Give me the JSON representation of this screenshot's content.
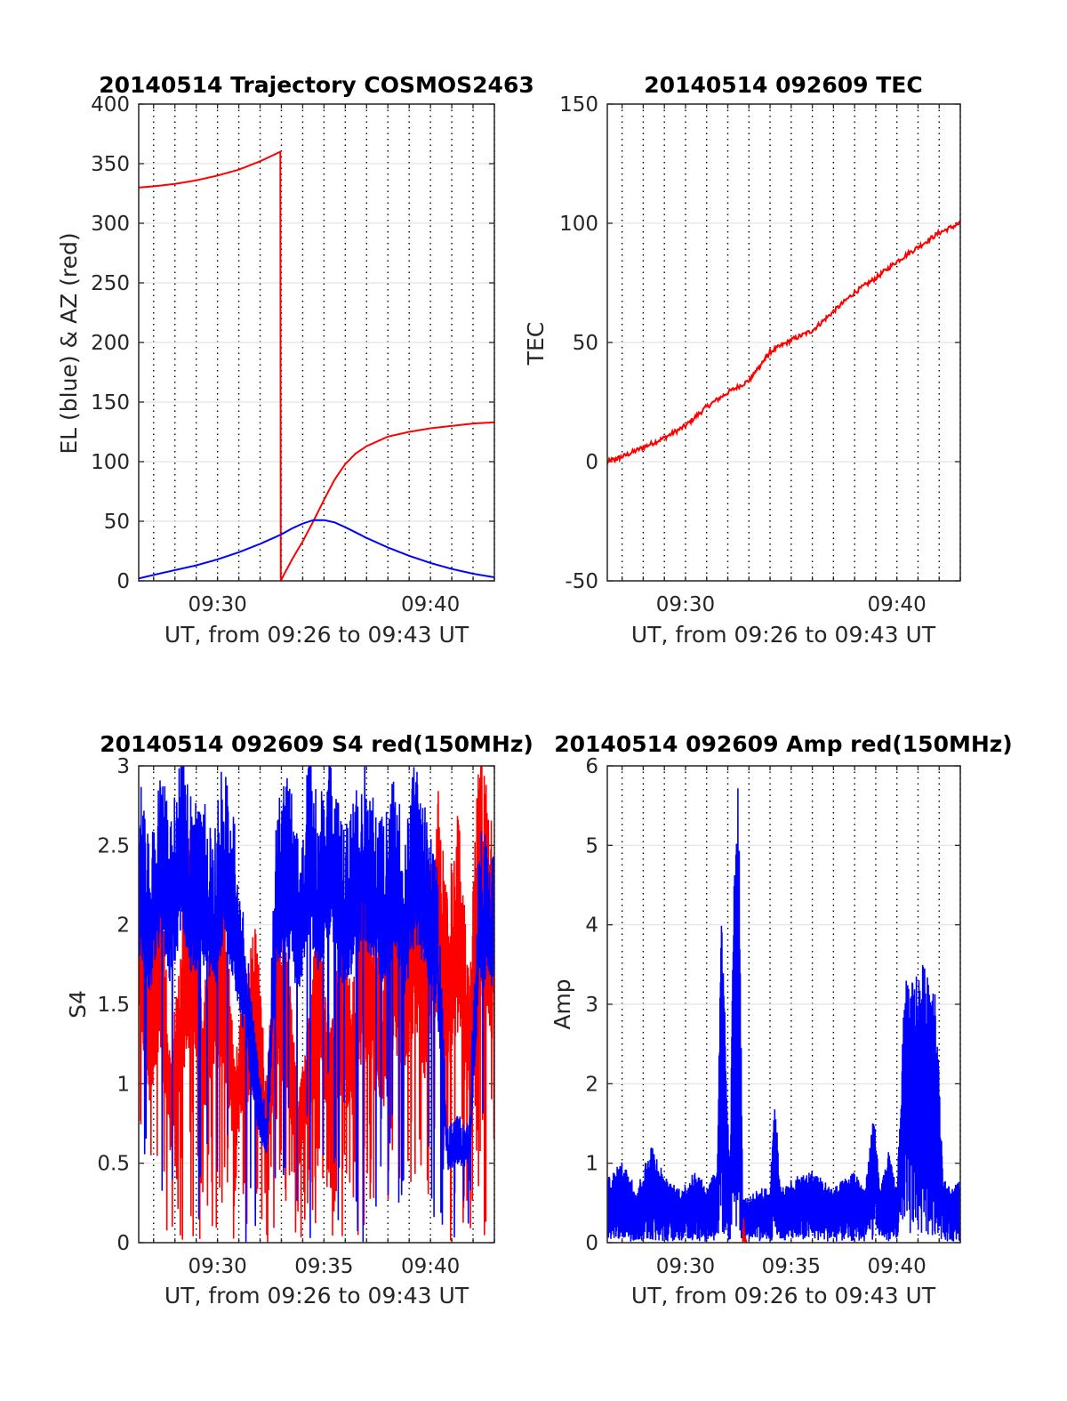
{
  "chart_data": [
    {
      "type": "line",
      "title": "20140514 Trajectory COSMOS2463",
      "xlabel": "UT, from 09:26 to 09:43 UT",
      "ylabel": "EL (blue) & AZ (red)",
      "xlim": [
        26.3,
        43.0
      ],
      "ylim": [
        0,
        400
      ],
      "xtick_values": [
        30,
        40
      ],
      "xtick_labels": [
        "09:30",
        "09:40"
      ],
      "ytick_values": [
        0,
        50,
        100,
        150,
        200,
        250,
        300,
        350,
        400
      ],
      "ytick_labels": [
        "0",
        "50",
        "100",
        "150",
        "200",
        "250",
        "300",
        "350",
        "400"
      ],
      "grid": true,
      "series": [
        {
          "color": "#ff0000",
          "x": [
            26.3,
            27,
            28,
            29,
            30,
            31,
            32,
            32.95,
            32.97,
            33.2,
            33.5,
            34,
            34.5,
            35,
            35.5,
            36,
            36.5,
            37,
            37.5,
            38,
            39,
            40,
            41,
            42,
            43
          ],
          "y": [
            330,
            331,
            333,
            336,
            340,
            345,
            352,
            360,
            0,
            8,
            18,
            33,
            50,
            68,
            85,
            98,
            107,
            113,
            117,
            121,
            125,
            128,
            130,
            132,
            133
          ]
        },
        {
          "color": "#0000ff",
          "x": [
            26.3,
            27,
            28,
            29,
            30,
            31,
            32,
            33,
            33.5,
            34,
            34.5,
            35,
            35.5,
            36,
            37,
            38,
            39,
            40,
            41,
            42,
            43
          ],
          "y": [
            2,
            5,
            9,
            13,
            18,
            24,
            31,
            39,
            44,
            48,
            51,
            51,
            49,
            45,
            36,
            28,
            21,
            15,
            10,
            6,
            3
          ]
        }
      ]
    },
    {
      "type": "line",
      "title": "20140514 092609 TEC",
      "xlabel": "UT, from 09:26 to 09:43 UT",
      "ylabel": "TEC",
      "xlim": [
        26.3,
        43.0
      ],
      "ylim": [
        -50,
        150
      ],
      "xtick_values": [
        30,
        40
      ],
      "xtick_labels": [
        "09:30",
        "09:40"
      ],
      "ytick_values": [
        -50,
        0,
        50,
        100,
        150
      ],
      "ytick_labels": [
        "-50",
        "0",
        "50",
        "100",
        "150"
      ],
      "grid": true,
      "series": [
        {
          "color": "#ff0000",
          "x": [
            26.3,
            27,
            28,
            29,
            30,
            31,
            32,
            33,
            33.5,
            34,
            35,
            36,
            37,
            38,
            39,
            40,
            41,
            42,
            43
          ],
          "y": [
            0,
            2,
            6,
            10,
            15,
            23,
            29,
            34,
            40,
            46,
            51,
            55,
            63,
            71,
            77,
            84,
            90,
            96,
            100
          ]
        }
      ]
    },
    {
      "type": "line",
      "title": "20140514 092609 S4 red(150MHz)",
      "xlabel": "UT, from 09:26 to 09:43 UT",
      "ylabel": "S4",
      "xlim": [
        26.3,
        43.0
      ],
      "ylim": [
        0,
        3
      ],
      "xtick_values": [
        30,
        35,
        40
      ],
      "xtick_labels": [
        "09:30",
        "09:35",
        "09:40"
      ],
      "ytick_values": [
        0,
        0.5,
        1,
        1.5,
        2,
        2.5,
        3
      ],
      "ytick_labels": [
        "0",
        "0.5",
        "1",
        "1.5",
        "2",
        "2.5",
        "3"
      ],
      "grid": true,
      "series": [
        {
          "color": "#ff0000",
          "x": [
            26.3,
            26.8,
            27.3,
            27.8,
            28.3,
            28.8,
            29.3,
            29.8,
            30.3,
            30.8,
            31.3,
            31.8,
            32.3,
            32.8,
            33.3,
            33.8,
            34.3,
            34.8,
            35.3,
            35.8,
            36.3,
            36.8,
            37.3,
            37.8,
            38.3,
            38.8,
            39.3,
            39.8,
            40.3,
            40.8,
            41.3,
            41.8,
            42.3,
            43.0
          ],
          "y": [
            2.4,
            1.6,
            2.2,
            1.0,
            1.8,
            2.4,
            1.3,
            1.9,
            2.0,
            1.0,
            1.5,
            1.8,
            0.9,
            2.0,
            1.6,
            0.8,
            1.3,
            1.9,
            1.2,
            1.7,
            1.4,
            2.1,
            1.8,
            1.5,
            2.2,
            1.9,
            2.4,
            1.8,
            2.6,
            1.9,
            2.4,
            1.5,
            2.8,
            2.2
          ]
        },
        {
          "color": "#0000ff",
          "x": [
            26.3,
            26.8,
            27.3,
            27.8,
            28.3,
            28.8,
            29.3,
            29.8,
            30.3,
            30.8,
            31.3,
            31.8,
            32.3,
            32.8,
            33.3,
            33.8,
            34.3,
            34.8,
            35.3,
            35.8,
            36.3,
            36.8,
            37.3,
            37.8,
            38.3,
            38.8,
            39.3,
            39.8,
            40.3,
            40.8,
            41.3,
            41.8,
            42.3,
            43.0
          ],
          "y": [
            2.6,
            2.2,
            2.7,
            2.3,
            2.8,
            2.4,
            2.5,
            2.2,
            2.7,
            2.3,
            1.8,
            1.1,
            0.7,
            2.5,
            2.6,
            2.2,
            2.7,
            2.4,
            2.8,
            2.3,
            2.4,
            2.7,
            2.5,
            2.3,
            2.6,
            2.2,
            2.7,
            2.4,
            2.1,
            0.65,
            0.7,
            0.65,
            2.3,
            2.2
          ]
        }
      ]
    },
    {
      "type": "line",
      "title": "20140514 092609 Amp red(150MHz)",
      "xlabel": "UT, from 09:26 to 09:43 UT",
      "ylabel": "Amp",
      "xlim": [
        26.3,
        43.0
      ],
      "ylim": [
        0,
        6
      ],
      "xtick_values": [
        30,
        35,
        40
      ],
      "xtick_labels": [
        "09:30",
        "09:35",
        "09:40"
      ],
      "ytick_values": [
        0,
        1,
        2,
        3,
        4,
        5,
        6
      ],
      "ytick_labels": [
        "0",
        "1",
        "2",
        "3",
        "4",
        "5",
        "6"
      ],
      "grid": true,
      "series": [
        {
          "color": "#0000ff",
          "x": [
            26.3,
            27.0,
            27.7,
            28.4,
            29.1,
            29.8,
            30.5,
            31.0,
            31.5,
            31.7,
            31.9,
            32.1,
            32.3,
            32.5,
            32.7,
            33.0,
            33.5,
            34.0,
            34.2,
            34.5,
            35.0,
            36.0,
            37.0,
            38.0,
            38.5,
            38.9,
            39.2,
            39.6,
            40.0,
            40.4,
            40.7,
            41.0,
            41.4,
            41.8,
            42.2,
            42.6,
            43.0
          ],
          "y": [
            0.7,
            0.9,
            0.6,
            1.1,
            0.7,
            0.6,
            0.8,
            0.6,
            0.9,
            3.7,
            2.2,
            0.6,
            4.6,
            5.5,
            0.5,
            0.5,
            0.6,
            0.6,
            1.7,
            0.6,
            0.7,
            0.8,
            0.6,
            0.8,
            0.6,
            1.5,
            0.6,
            1.0,
            0.6,
            3.0,
            2.9,
            3.0,
            3.1,
            2.9,
            0.7,
            0.6,
            0.7
          ]
        },
        {
          "color": "#ff0000",
          "x": [
            32.7,
            32.75,
            32.8,
            32.9
          ],
          "y": [
            0,
            0.3,
            0.1,
            0
          ]
        }
      ]
    }
  ]
}
